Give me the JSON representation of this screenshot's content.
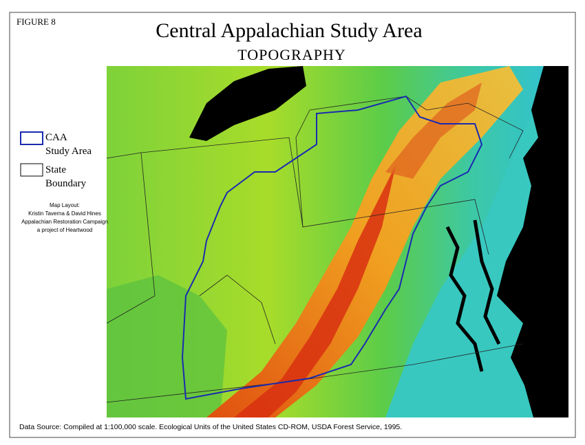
{
  "figure_label": "FIGURE 8",
  "title": "Central Appalachian Study Area",
  "subtitle": "TOPOGRAPHY",
  "legend": [
    {
      "lines": [
        "CAA",
        "Study Area"
      ]
    },
    {
      "lines": [
        "State",
        "Boundary"
      ]
    }
  ],
  "credits": [
    "Map Layout:",
    "Kristin Taverna &  David Hines",
    "Appalachian Restoration Campaign",
    "a project of Heartwood"
  ],
  "source": "Data Source: Compiled at 1:100,000 scale. Ecological Units of the United States CD-ROM, USDA Forest Service, 1995."
}
